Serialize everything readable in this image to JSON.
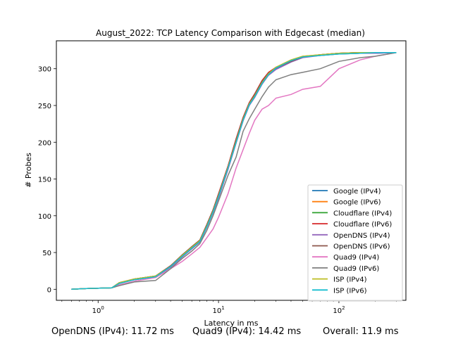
{
  "chart_data": {
    "type": "line",
    "title": "August_2022: TCP Latency Comparison with Edgecast (median)",
    "xlabel": "Latency in ms",
    "ylabel": "# Probes",
    "xscale": "log",
    "xlim": [
      0.45,
      360
    ],
    "ylim": [
      -15,
      338
    ],
    "xticks": [
      {
        "value": 1,
        "label": "10^0"
      },
      {
        "value": 10,
        "label": "10^1"
      },
      {
        "value": 100,
        "label": "10^2"
      }
    ],
    "yticks": [
      0,
      50,
      100,
      150,
      200,
      250,
      300
    ],
    "grid": false,
    "legend": "lower-right",
    "series": [
      {
        "name": "Google (IPv4)",
        "color": "#1f77b4",
        "points": [
          [
            0.6,
            0
          ],
          [
            0.8,
            1
          ],
          [
            1.3,
            2
          ],
          [
            1.5,
            8
          ],
          [
            2,
            13
          ],
          [
            3,
            17
          ],
          [
            4,
            30
          ],
          [
            5,
            45
          ],
          [
            6,
            55
          ],
          [
            7,
            65
          ],
          [
            8,
            85
          ],
          [
            9,
            105
          ],
          [
            10,
            125
          ],
          [
            12,
            165
          ],
          [
            14,
            200
          ],
          [
            16,
            230
          ],
          [
            18,
            250
          ],
          [
            20,
            262
          ],
          [
            23,
            280
          ],
          [
            26,
            292
          ],
          [
            30,
            300
          ],
          [
            40,
            310
          ],
          [
            50,
            316
          ],
          [
            70,
            318
          ],
          [
            100,
            320
          ],
          [
            150,
            321
          ],
          [
            200,
            321
          ],
          [
            300,
            322
          ]
        ]
      },
      {
        "name": "Google (IPv6)",
        "color": "#ff7f0e",
        "points": [
          [
            0.6,
            0
          ],
          [
            0.8,
            1
          ],
          [
            1.3,
            2
          ],
          [
            1.5,
            9
          ],
          [
            2,
            14
          ],
          [
            3,
            18
          ],
          [
            4,
            32
          ],
          [
            5,
            46
          ],
          [
            6,
            57
          ],
          [
            7,
            66
          ],
          [
            8,
            87
          ],
          [
            9,
            107
          ],
          [
            10,
            128
          ],
          [
            12,
            167
          ],
          [
            14,
            202
          ],
          [
            16,
            232
          ],
          [
            18,
            252
          ],
          [
            20,
            264
          ],
          [
            23,
            282
          ],
          [
            26,
            294
          ],
          [
            30,
            302
          ],
          [
            40,
            312
          ],
          [
            50,
            317
          ],
          [
            70,
            319
          ],
          [
            100,
            321
          ],
          [
            150,
            322
          ],
          [
            200,
            322
          ],
          [
            300,
            322
          ]
        ]
      },
      {
        "name": "Cloudflare (IPv4)",
        "color": "#2ca02c",
        "points": [
          [
            0.6,
            0
          ],
          [
            0.8,
            1
          ],
          [
            1.3,
            2
          ],
          [
            1.5,
            9
          ],
          [
            2,
            14
          ],
          [
            3,
            18
          ],
          [
            4,
            31
          ],
          [
            5,
            46
          ],
          [
            6,
            57
          ],
          [
            7,
            66
          ],
          [
            8,
            86
          ],
          [
            9,
            106
          ],
          [
            10,
            127
          ],
          [
            12,
            166
          ],
          [
            14,
            201
          ],
          [
            16,
            231
          ],
          [
            18,
            252
          ],
          [
            20,
            263
          ],
          [
            23,
            281
          ],
          [
            26,
            293
          ],
          [
            30,
            301
          ],
          [
            40,
            311
          ],
          [
            50,
            316
          ],
          [
            70,
            319
          ],
          [
            100,
            321
          ],
          [
            150,
            322
          ],
          [
            200,
            322
          ],
          [
            300,
            322
          ]
        ]
      },
      {
        "name": "Cloudflare (IPv6)",
        "color": "#d62728",
        "points": [
          [
            0.6,
            0
          ],
          [
            0.8,
            1
          ],
          [
            1.3,
            2
          ],
          [
            1.5,
            9
          ],
          [
            2,
            14
          ],
          [
            3,
            18
          ],
          [
            4,
            32
          ],
          [
            5,
            46
          ],
          [
            6,
            58
          ],
          [
            7,
            67
          ],
          [
            8,
            88
          ],
          [
            9,
            108
          ],
          [
            10,
            130
          ],
          [
            12,
            168
          ],
          [
            14,
            205
          ],
          [
            16,
            234
          ],
          [
            18,
            254
          ],
          [
            20,
            266
          ],
          [
            23,
            284
          ],
          [
            26,
            295
          ],
          [
            30,
            302
          ],
          [
            40,
            311
          ],
          [
            50,
            316
          ],
          [
            70,
            319
          ],
          [
            100,
            321
          ],
          [
            150,
            322
          ],
          [
            200,
            322
          ],
          [
            300,
            322
          ]
        ]
      },
      {
        "name": "OpenDNS (IPv4)",
        "color": "#9467bd",
        "points": [
          [
            0.6,
            0
          ],
          [
            0.8,
            1
          ],
          [
            1.3,
            2
          ],
          [
            1.5,
            8
          ],
          [
            2,
            13
          ],
          [
            3,
            17
          ],
          [
            4,
            30
          ],
          [
            5,
            44
          ],
          [
            6,
            55
          ],
          [
            7,
            64
          ],
          [
            8,
            84
          ],
          [
            9,
            104
          ],
          [
            10,
            124
          ],
          [
            12,
            163
          ],
          [
            14,
            199
          ],
          [
            16,
            229
          ],
          [
            18,
            250
          ],
          [
            20,
            261
          ],
          [
            23,
            279
          ],
          [
            26,
            291
          ],
          [
            30,
            299
          ],
          [
            40,
            309
          ],
          [
            50,
            315
          ],
          [
            70,
            318
          ],
          [
            100,
            320
          ],
          [
            150,
            321
          ],
          [
            200,
            321
          ],
          [
            300,
            322
          ]
        ]
      },
      {
        "name": "OpenDNS (IPv6)",
        "color": "#8c564b",
        "points": [
          [
            0.6,
            0
          ],
          [
            0.8,
            1
          ],
          [
            1.3,
            2
          ],
          [
            1.5,
            9
          ],
          [
            2,
            14
          ],
          [
            3,
            18
          ],
          [
            4,
            32
          ],
          [
            5,
            47
          ],
          [
            6,
            58
          ],
          [
            7,
            67
          ],
          [
            8,
            88
          ],
          [
            9,
            108
          ],
          [
            10,
            129
          ],
          [
            12,
            167
          ],
          [
            14,
            204
          ],
          [
            16,
            233
          ],
          [
            18,
            253
          ],
          [
            20,
            265
          ],
          [
            23,
            283
          ],
          [
            26,
            294
          ],
          [
            30,
            301
          ],
          [
            40,
            310
          ],
          [
            50,
            316
          ],
          [
            70,
            319
          ],
          [
            100,
            321
          ],
          [
            150,
            322
          ],
          [
            200,
            322
          ],
          [
            300,
            322
          ]
        ]
      },
      {
        "name": "Quad9 (IPv4)",
        "color": "#e377c2",
        "points": [
          [
            0.6,
            0
          ],
          [
            0.8,
            1
          ],
          [
            1.3,
            2
          ],
          [
            1.5,
            6
          ],
          [
            2,
            11
          ],
          [
            3,
            16
          ],
          [
            4,
            28
          ],
          [
            5,
            38
          ],
          [
            6,
            48
          ],
          [
            7,
            57
          ],
          [
            8,
            70
          ],
          [
            9,
            82
          ],
          [
            10,
            98
          ],
          [
            12,
            130
          ],
          [
            14,
            165
          ],
          [
            16,
            190
          ],
          [
            18,
            212
          ],
          [
            20,
            230
          ],
          [
            23,
            245
          ],
          [
            26,
            250
          ],
          [
            30,
            260
          ],
          [
            40,
            265
          ],
          [
            50,
            272
          ],
          [
            70,
            276
          ],
          [
            80,
            285
          ],
          [
            100,
            300
          ],
          [
            150,
            312
          ],
          [
            200,
            317
          ],
          [
            300,
            322
          ]
        ]
      },
      {
        "name": "Quad9 (IPv6)",
        "color": "#7f7f7f",
        "points": [
          [
            0.6,
            0
          ],
          [
            0.8,
            1
          ],
          [
            1.3,
            2
          ],
          [
            1.5,
            5
          ],
          [
            2,
            10
          ],
          [
            3,
            12
          ],
          [
            4,
            28
          ],
          [
            5,
            42
          ],
          [
            6,
            52
          ],
          [
            7,
            62
          ],
          [
            8,
            80
          ],
          [
            9,
            100
          ],
          [
            10,
            120
          ],
          [
            12,
            155
          ],
          [
            14,
            180
          ],
          [
            16,
            215
          ],
          [
            18,
            232
          ],
          [
            20,
            245
          ],
          [
            23,
            262
          ],
          [
            26,
            275
          ],
          [
            30,
            285
          ],
          [
            40,
            292
          ],
          [
            50,
            295
          ],
          [
            70,
            300
          ],
          [
            100,
            310
          ],
          [
            150,
            315
          ],
          [
            200,
            317
          ],
          [
            300,
            322
          ]
        ]
      },
      {
        "name": "ISP (IPv4)",
        "color": "#bcbd22",
        "points": [
          [
            0.6,
            0
          ],
          [
            0.8,
            1
          ],
          [
            1.3,
            2
          ],
          [
            1.5,
            9
          ],
          [
            2,
            14
          ],
          [
            3,
            18
          ],
          [
            4,
            31
          ],
          [
            5,
            46
          ],
          [
            6,
            57
          ],
          [
            7,
            66
          ],
          [
            8,
            86
          ],
          [
            9,
            106
          ],
          [
            10,
            127
          ],
          [
            12,
            166
          ],
          [
            14,
            201
          ],
          [
            16,
            231
          ],
          [
            18,
            252
          ],
          [
            20,
            263
          ],
          [
            23,
            281
          ],
          [
            26,
            293
          ],
          [
            30,
            302
          ],
          [
            40,
            312
          ],
          [
            50,
            317
          ],
          [
            70,
            319
          ],
          [
            100,
            321
          ],
          [
            150,
            322
          ],
          [
            200,
            322
          ],
          [
            300,
            322
          ]
        ]
      },
      {
        "name": "ISP (IPv6)",
        "color": "#17becf",
        "points": [
          [
            0.6,
            0
          ],
          [
            0.8,
            1
          ],
          [
            1.3,
            2
          ],
          [
            1.5,
            8
          ],
          [
            2,
            13
          ],
          [
            3,
            17
          ],
          [
            4,
            31
          ],
          [
            5,
            45
          ],
          [
            6,
            56
          ],
          [
            7,
            65
          ],
          [
            8,
            85
          ],
          [
            9,
            105
          ],
          [
            10,
            126
          ],
          [
            12,
            165
          ],
          [
            14,
            200
          ],
          [
            16,
            230
          ],
          [
            18,
            251
          ],
          [
            20,
            262
          ],
          [
            23,
            280
          ],
          [
            26,
            292
          ],
          [
            30,
            301
          ],
          [
            40,
            311
          ],
          [
            50,
            316
          ],
          [
            70,
            318
          ],
          [
            100,
            320
          ],
          [
            150,
            321
          ],
          [
            200,
            322
          ],
          [
            300,
            322
          ]
        ]
      }
    ]
  },
  "footer": {
    "opendns": "OpenDNS (IPv4): 11.72 ms",
    "quad9": "Quad9 (IPv4): 14.42 ms",
    "overall": "Overall: 11.9 ms"
  }
}
